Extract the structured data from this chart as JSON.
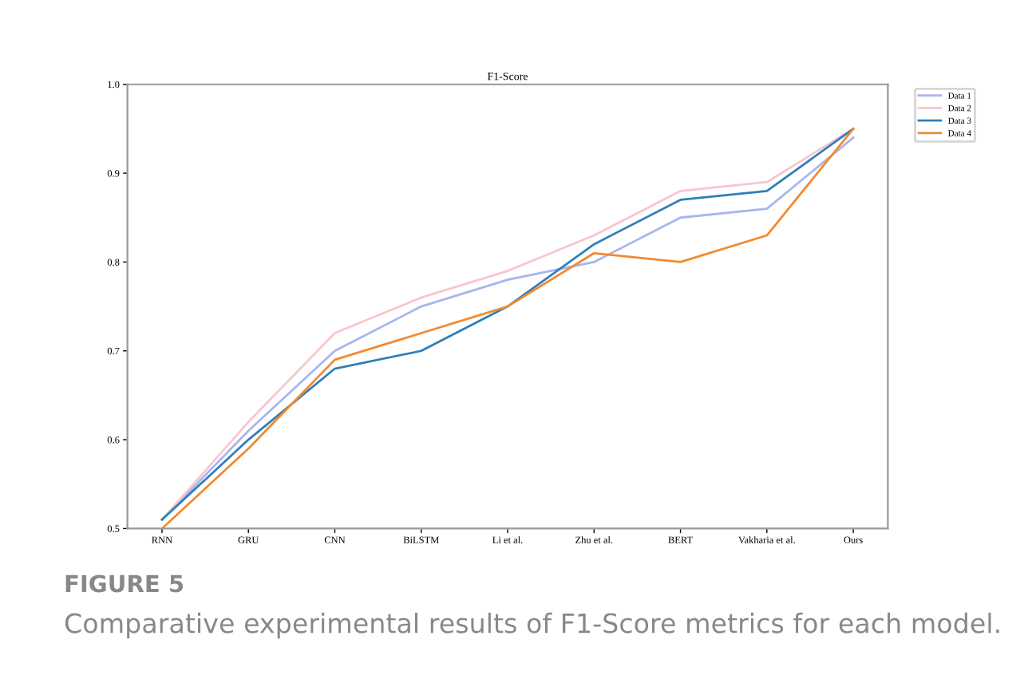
{
  "chart_data": {
    "type": "line",
    "title": "F1-Score",
    "categories": [
      "RNN",
      "GRU",
      "CNN",
      "BiLSTM",
      "Li et al.",
      "Zhu et al.",
      "BERT",
      "Vakharia et al.",
      "Ours"
    ],
    "series": [
      {
        "name": "Data 1",
        "color": "#a9b4f0",
        "values": [
          0.51,
          0.61,
          0.7,
          0.75,
          0.78,
          0.8,
          0.85,
          0.86,
          0.94
        ]
      },
      {
        "name": "Data 2",
        "color": "#f7c6cf",
        "values": [
          0.51,
          0.62,
          0.72,
          0.76,
          0.79,
          0.83,
          0.88,
          0.89,
          0.95
        ]
      },
      {
        "name": "Data 3",
        "color": "#2f7fb8",
        "values": [
          0.51,
          0.6,
          0.68,
          0.7,
          0.75,
          0.82,
          0.87,
          0.88,
          0.95
        ]
      },
      {
        "name": "Data 4",
        "color": "#f28a2e",
        "values": [
          0.5,
          0.59,
          0.69,
          0.72,
          0.75,
          0.81,
          0.8,
          0.83,
          0.95
        ]
      }
    ],
    "ylim": [
      0.5,
      1.0
    ],
    "yticks": [
      0.5,
      0.6,
      0.7,
      0.8,
      0.9,
      {
        "value": 1.0,
        "label": "1.0"
      }
    ],
    "legend": "top right",
    "grid": false,
    "marker": "none",
    "line_style": "solid",
    "annotations": [
      "FIGURE 5",
      "Comparative experimental results of F1-Score metrics for each model."
    ]
  }
}
